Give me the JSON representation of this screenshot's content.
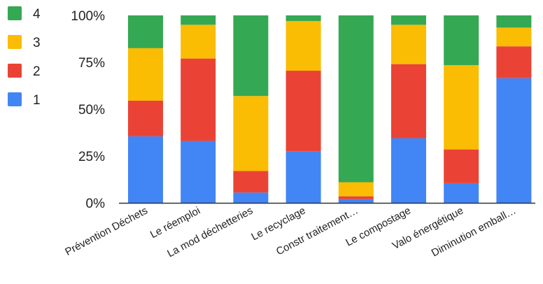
{
  "chart_data": {
    "type": "bar",
    "stacked": true,
    "normalized": true,
    "categories": [
      "Prévention Déchets",
      "Le réemploi",
      "La mod déchetteries",
      "Le recyclage",
      "Constr traitement…",
      "Le compostage",
      "Valo énergétique",
      "Diminution emball…"
    ],
    "series": [
      {
        "name": "1",
        "color": "#4285f4",
        "values": [
          35.5,
          33,
          5.5,
          27.5,
          2,
          34.5,
          10.5,
          66.5
        ]
      },
      {
        "name": "2",
        "color": "#ea4335",
        "values": [
          19,
          44,
          11.5,
          43,
          1.5,
          39.5,
          18,
          17
        ]
      },
      {
        "name": "3",
        "color": "#fbbc04",
        "values": [
          28,
          18,
          40,
          26.5,
          7.5,
          21,
          45,
          10
        ]
      },
      {
        "name": "4",
        "color": "#34a853",
        "values": [
          17.5,
          5,
          43,
          3,
          89,
          5,
          26.5,
          6.5
        ]
      }
    ],
    "y_ticks": [
      "0%",
      "25%",
      "50%",
      "75%",
      "100%"
    ],
    "ylim": [
      0,
      100
    ],
    "grid": false,
    "legend_position": "top-left"
  }
}
